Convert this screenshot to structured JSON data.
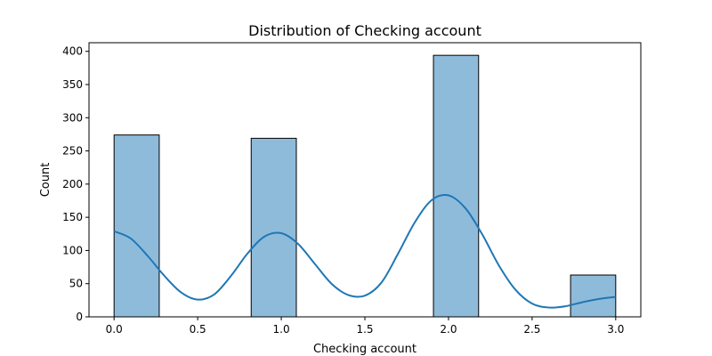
{
  "chart_data": {
    "type": "bar",
    "subtype": "histogram-with-kde",
    "title": "Distribution of Checking account",
    "xlabel": "Checking account",
    "ylabel": "Count",
    "xlim": [
      -0.15,
      3.15
    ],
    "ylim": [
      0,
      413
    ],
    "xticks": [
      0.0,
      0.5,
      1.0,
      1.5,
      2.0,
      2.5,
      3.0
    ],
    "xtick_labels": [
      "0.0",
      "0.5",
      "1.0",
      "1.5",
      "2.0",
      "2.5",
      "3.0"
    ],
    "yticks": [
      0,
      50,
      100,
      150,
      200,
      250,
      300,
      350,
      400
    ],
    "ytick_labels": [
      "0",
      "50",
      "100",
      "150",
      "200",
      "250",
      "300",
      "350",
      "400"
    ],
    "grid": false,
    "legend": "none",
    "bins": [
      {
        "x0": 0.0,
        "x1": 0.27,
        "count": 274
      },
      {
        "x0": 0.27,
        "x1": 0.55,
        "count": 0
      },
      {
        "x0": 0.55,
        "x1": 0.82,
        "count": 0
      },
      {
        "x0": 0.82,
        "x1": 1.09,
        "count": 269
      },
      {
        "x0": 1.09,
        "x1": 1.36,
        "count": 0
      },
      {
        "x0": 1.36,
        "x1": 1.64,
        "count": 0
      },
      {
        "x0": 1.64,
        "x1": 1.91,
        "count": 0
      },
      {
        "x0": 1.91,
        "x1": 2.18,
        "count": 394
      },
      {
        "x0": 2.18,
        "x1": 2.45,
        "count": 0
      },
      {
        "x0": 2.45,
        "x1": 2.73,
        "count": 0
      },
      {
        "x0": 2.73,
        "x1": 3.0,
        "count": 63
      }
    ],
    "kde": {
      "x": [
        0.0,
        0.1,
        0.2,
        0.3,
        0.4,
        0.5,
        0.6,
        0.7,
        0.8,
        0.9,
        1.0,
        1.1,
        1.2,
        1.3,
        1.4,
        1.5,
        1.6,
        1.7,
        1.8,
        1.9,
        2.0,
        2.1,
        2.2,
        2.3,
        2.4,
        2.5,
        2.6,
        2.7,
        2.8,
        2.9,
        3.0
      ],
      "y": [
        129,
        118,
        92,
        62,
        37,
        26,
        34,
        62,
        96,
        121,
        126,
        110,
        80,
        50,
        33,
        32,
        52,
        96,
        143,
        176,
        183,
        164,
        125,
        78,
        41,
        20,
        14,
        16,
        22,
        27,
        30
      ]
    },
    "colors": {
      "bar_fill": "#8fbbdb",
      "bar_edge": "#000000",
      "kde_line": "#1f77b4",
      "axes": "#000000"
    }
  }
}
